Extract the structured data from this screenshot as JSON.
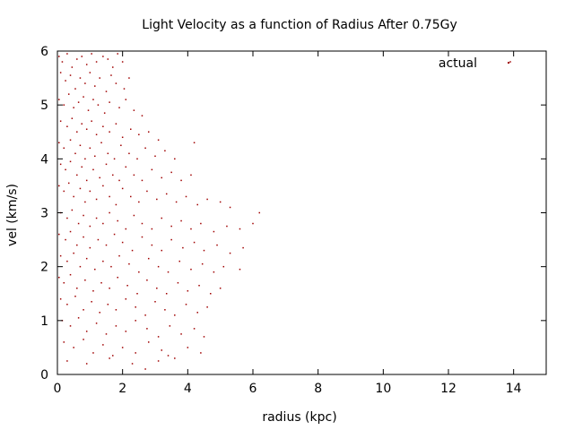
{
  "chart_data": {
    "type": "scatter",
    "title": "Light Velocity as a function of Radius After 0.75Gy",
    "xlabel": "radius (kpc)",
    "ylabel": "vel (km/s)",
    "xlim": [
      0,
      15
    ],
    "ylim": [
      0,
      6
    ],
    "xticks": [
      "0",
      "2",
      "4",
      "6",
      "8",
      "10",
      "12",
      "14"
    ],
    "yticks": [
      "0",
      "1",
      "2",
      "3",
      "4",
      "5",
      "6"
    ],
    "grid": false,
    "legend_position": "top-right",
    "series": [
      {
        "name": "actual",
        "color": "#a00000",
        "points": [
          [
            0.05,
            5.9
          ],
          [
            0.15,
            5.8
          ],
          [
            0.3,
            5.95
          ],
          [
            0.45,
            5.7
          ],
          [
            0.6,
            5.85
          ],
          [
            0.75,
            5.9
          ],
          [
            0.9,
            5.75
          ],
          [
            1.05,
            5.95
          ],
          [
            1.2,
            5.8
          ],
          [
            1.4,
            5.9
          ],
          [
            1.55,
            5.85
          ],
          [
            1.7,
            5.7
          ],
          [
            1.85,
            5.95
          ],
          [
            2.0,
            5.8
          ],
          [
            0.1,
            5.6
          ],
          [
            0.25,
            5.45
          ],
          [
            0.4,
            5.55
          ],
          [
            0.55,
            5.3
          ],
          [
            0.7,
            5.5
          ],
          [
            0.85,
            5.4
          ],
          [
            1.0,
            5.6
          ],
          [
            1.15,
            5.35
          ],
          [
            1.3,
            5.5
          ],
          [
            1.5,
            5.25
          ],
          [
            1.65,
            5.55
          ],
          [
            1.8,
            5.4
          ],
          [
            2.05,
            5.3
          ],
          [
            2.2,
            5.5
          ],
          [
            0.05,
            5.1
          ],
          [
            0.2,
            5.0
          ],
          [
            0.35,
            5.2
          ],
          [
            0.5,
            4.95
          ],
          [
            0.65,
            5.05
          ],
          [
            0.8,
            5.15
          ],
          [
            0.95,
            4.9
          ],
          [
            1.1,
            5.1
          ],
          [
            1.25,
            5.0
          ],
          [
            1.45,
            4.85
          ],
          [
            1.6,
            5.05
          ],
          [
            1.9,
            4.95
          ],
          [
            2.1,
            5.1
          ],
          [
            2.35,
            4.9
          ],
          [
            2.6,
            4.8
          ],
          [
            0.1,
            4.7
          ],
          [
            0.3,
            4.6
          ],
          [
            0.45,
            4.75
          ],
          [
            0.6,
            4.5
          ],
          [
            0.75,
            4.65
          ],
          [
            0.9,
            4.55
          ],
          [
            1.05,
            4.7
          ],
          [
            1.2,
            4.45
          ],
          [
            1.4,
            4.6
          ],
          [
            1.6,
            4.5
          ],
          [
            1.8,
            4.65
          ],
          [
            2.0,
            4.4
          ],
          [
            2.25,
            4.55
          ],
          [
            2.5,
            4.45
          ],
          [
            2.8,
            4.5
          ],
          [
            3.1,
            4.35
          ],
          [
            0.05,
            4.3
          ],
          [
            0.2,
            4.2
          ],
          [
            0.4,
            4.35
          ],
          [
            0.55,
            4.1
          ],
          [
            0.7,
            4.25
          ],
          [
            0.85,
            4.0
          ],
          [
            1.0,
            4.2
          ],
          [
            1.15,
            4.05
          ],
          [
            1.35,
            4.3
          ],
          [
            1.55,
            4.1
          ],
          [
            1.75,
            4.0
          ],
          [
            1.95,
            4.25
          ],
          [
            2.2,
            4.1
          ],
          [
            2.45,
            4.0
          ],
          [
            2.7,
            4.2
          ],
          [
            3.0,
            4.05
          ],
          [
            3.3,
            4.15
          ],
          [
            3.6,
            4.0
          ],
          [
            4.2,
            4.3
          ],
          [
            0.1,
            3.9
          ],
          [
            0.25,
            3.8
          ],
          [
            0.4,
            3.95
          ],
          [
            0.6,
            3.7
          ],
          [
            0.75,
            3.85
          ],
          [
            0.9,
            3.6
          ],
          [
            1.1,
            3.8
          ],
          [
            1.3,
            3.65
          ],
          [
            1.5,
            3.9
          ],
          [
            1.7,
            3.7
          ],
          [
            1.9,
            3.6
          ],
          [
            2.1,
            3.85
          ],
          [
            2.35,
            3.7
          ],
          [
            2.6,
            3.6
          ],
          [
            2.9,
            3.8
          ],
          [
            3.2,
            3.65
          ],
          [
            3.5,
            3.75
          ],
          [
            3.8,
            3.6
          ],
          [
            4.1,
            3.7
          ],
          [
            0.05,
            3.5
          ],
          [
            0.2,
            3.4
          ],
          [
            0.35,
            3.55
          ],
          [
            0.5,
            3.3
          ],
          [
            0.7,
            3.45
          ],
          [
            0.85,
            3.2
          ],
          [
            1.0,
            3.4
          ],
          [
            1.2,
            3.25
          ],
          [
            1.4,
            3.5
          ],
          [
            1.6,
            3.3
          ],
          [
            1.8,
            3.15
          ],
          [
            2.0,
            3.45
          ],
          [
            2.25,
            3.3
          ],
          [
            2.5,
            3.2
          ],
          [
            2.75,
            3.4
          ],
          [
            3.05,
            3.25
          ],
          [
            3.35,
            3.35
          ],
          [
            3.65,
            3.2
          ],
          [
            3.95,
            3.3
          ],
          [
            4.3,
            3.15
          ],
          [
            4.6,
            3.25
          ],
          [
            5.0,
            3.2
          ],
          [
            5.3,
            3.1
          ],
          [
            0.1,
            3.0
          ],
          [
            0.3,
            2.9
          ],
          [
            0.45,
            3.05
          ],
          [
            0.65,
            2.8
          ],
          [
            0.8,
            2.95
          ],
          [
            1.0,
            2.75
          ],
          [
            1.2,
            2.9
          ],
          [
            1.4,
            2.8
          ],
          [
            1.6,
            3.0
          ],
          [
            1.85,
            2.85
          ],
          [
            2.1,
            2.7
          ],
          [
            2.35,
            2.95
          ],
          [
            2.6,
            2.8
          ],
          [
            2.9,
            2.7
          ],
          [
            3.2,
            2.9
          ],
          [
            3.5,
            2.75
          ],
          [
            3.8,
            2.85
          ],
          [
            4.1,
            2.7
          ],
          [
            4.4,
            2.8
          ],
          [
            4.8,
            2.65
          ],
          [
            5.2,
            2.75
          ],
          [
            5.6,
            2.7
          ],
          [
            6.0,
            2.8
          ],
          [
            6.2,
            3.0
          ],
          [
            0.05,
            2.6
          ],
          [
            0.25,
            2.5
          ],
          [
            0.4,
            2.65
          ],
          [
            0.6,
            2.4
          ],
          [
            0.8,
            2.55
          ],
          [
            1.0,
            2.35
          ],
          [
            1.25,
            2.5
          ],
          [
            1.5,
            2.4
          ],
          [
            1.75,
            2.6
          ],
          [
            2.0,
            2.45
          ],
          [
            2.3,
            2.3
          ],
          [
            2.6,
            2.55
          ],
          [
            2.9,
            2.4
          ],
          [
            3.2,
            2.3
          ],
          [
            3.5,
            2.5
          ],
          [
            3.85,
            2.35
          ],
          [
            4.2,
            2.45
          ],
          [
            4.5,
            2.3
          ],
          [
            4.9,
            2.4
          ],
          [
            5.3,
            2.25
          ],
          [
            5.7,
            2.35
          ],
          [
            0.1,
            2.2
          ],
          [
            0.3,
            2.1
          ],
          [
            0.5,
            2.25
          ],
          [
            0.7,
            2.0
          ],
          [
            0.9,
            2.15
          ],
          [
            1.15,
            1.95
          ],
          [
            1.4,
            2.1
          ],
          [
            1.65,
            2.0
          ],
          [
            1.9,
            2.2
          ],
          [
            2.2,
            2.05
          ],
          [
            2.5,
            1.9
          ],
          [
            2.8,
            2.15
          ],
          [
            3.1,
            2.0
          ],
          [
            3.4,
            1.9
          ],
          [
            3.75,
            2.1
          ],
          [
            4.1,
            1.95
          ],
          [
            4.45,
            2.05
          ],
          [
            4.8,
            1.9
          ],
          [
            5.1,
            2.0
          ],
          [
            5.6,
            1.95
          ],
          [
            0.05,
            1.8
          ],
          [
            0.2,
            1.7
          ],
          [
            0.4,
            1.85
          ],
          [
            0.6,
            1.6
          ],
          [
            0.85,
            1.75
          ],
          [
            1.1,
            1.55
          ],
          [
            1.35,
            1.7
          ],
          [
            1.6,
            1.6
          ],
          [
            1.85,
            1.8
          ],
          [
            2.15,
            1.65
          ],
          [
            2.45,
            1.5
          ],
          [
            2.75,
            1.75
          ],
          [
            3.05,
            1.6
          ],
          [
            3.35,
            1.5
          ],
          [
            3.7,
            1.7
          ],
          [
            4.0,
            1.55
          ],
          [
            4.35,
            1.65
          ],
          [
            4.7,
            1.5
          ],
          [
            5.0,
            1.6
          ],
          [
            0.1,
            1.4
          ],
          [
            0.3,
            1.3
          ],
          [
            0.55,
            1.45
          ],
          [
            0.8,
            1.2
          ],
          [
            1.05,
            1.35
          ],
          [
            1.3,
            1.15
          ],
          [
            1.55,
            1.3
          ],
          [
            1.8,
            1.2
          ],
          [
            2.1,
            1.4
          ],
          [
            2.4,
            1.25
          ],
          [
            2.7,
            1.1
          ],
          [
            3.0,
            1.35
          ],
          [
            3.3,
            1.2
          ],
          [
            3.6,
            1.1
          ],
          [
            3.95,
            1.3
          ],
          [
            4.3,
            1.15
          ],
          [
            4.6,
            1.25
          ],
          [
            0.15,
            1.0
          ],
          [
            0.4,
            0.9
          ],
          [
            0.65,
            1.05
          ],
          [
            0.9,
            0.8
          ],
          [
            1.2,
            0.95
          ],
          [
            1.5,
            0.75
          ],
          [
            1.8,
            0.9
          ],
          [
            2.1,
            0.8
          ],
          [
            2.4,
            1.0
          ],
          [
            2.75,
            0.85
          ],
          [
            3.1,
            0.7
          ],
          [
            3.45,
            0.9
          ],
          [
            3.8,
            0.75
          ],
          [
            4.2,
            0.85
          ],
          [
            4.5,
            0.7
          ],
          [
            0.2,
            0.6
          ],
          [
            0.5,
            0.5
          ],
          [
            0.8,
            0.65
          ],
          [
            1.1,
            0.4
          ],
          [
            1.4,
            0.55
          ],
          [
            1.7,
            0.35
          ],
          [
            2.0,
            0.5
          ],
          [
            2.4,
            0.4
          ],
          [
            2.8,
            0.6
          ],
          [
            3.2,
            0.45
          ],
          [
            3.6,
            0.3
          ],
          [
            4.0,
            0.5
          ],
          [
            4.4,
            0.4
          ],
          [
            0.3,
            0.25
          ],
          [
            0.9,
            0.2
          ],
          [
            1.6,
            0.3
          ],
          [
            2.3,
            0.2
          ],
          [
            2.7,
            0.1
          ],
          [
            3.1,
            0.25
          ],
          [
            3.4,
            0.35
          ],
          [
            13.9,
            5.8
          ]
        ]
      }
    ]
  }
}
